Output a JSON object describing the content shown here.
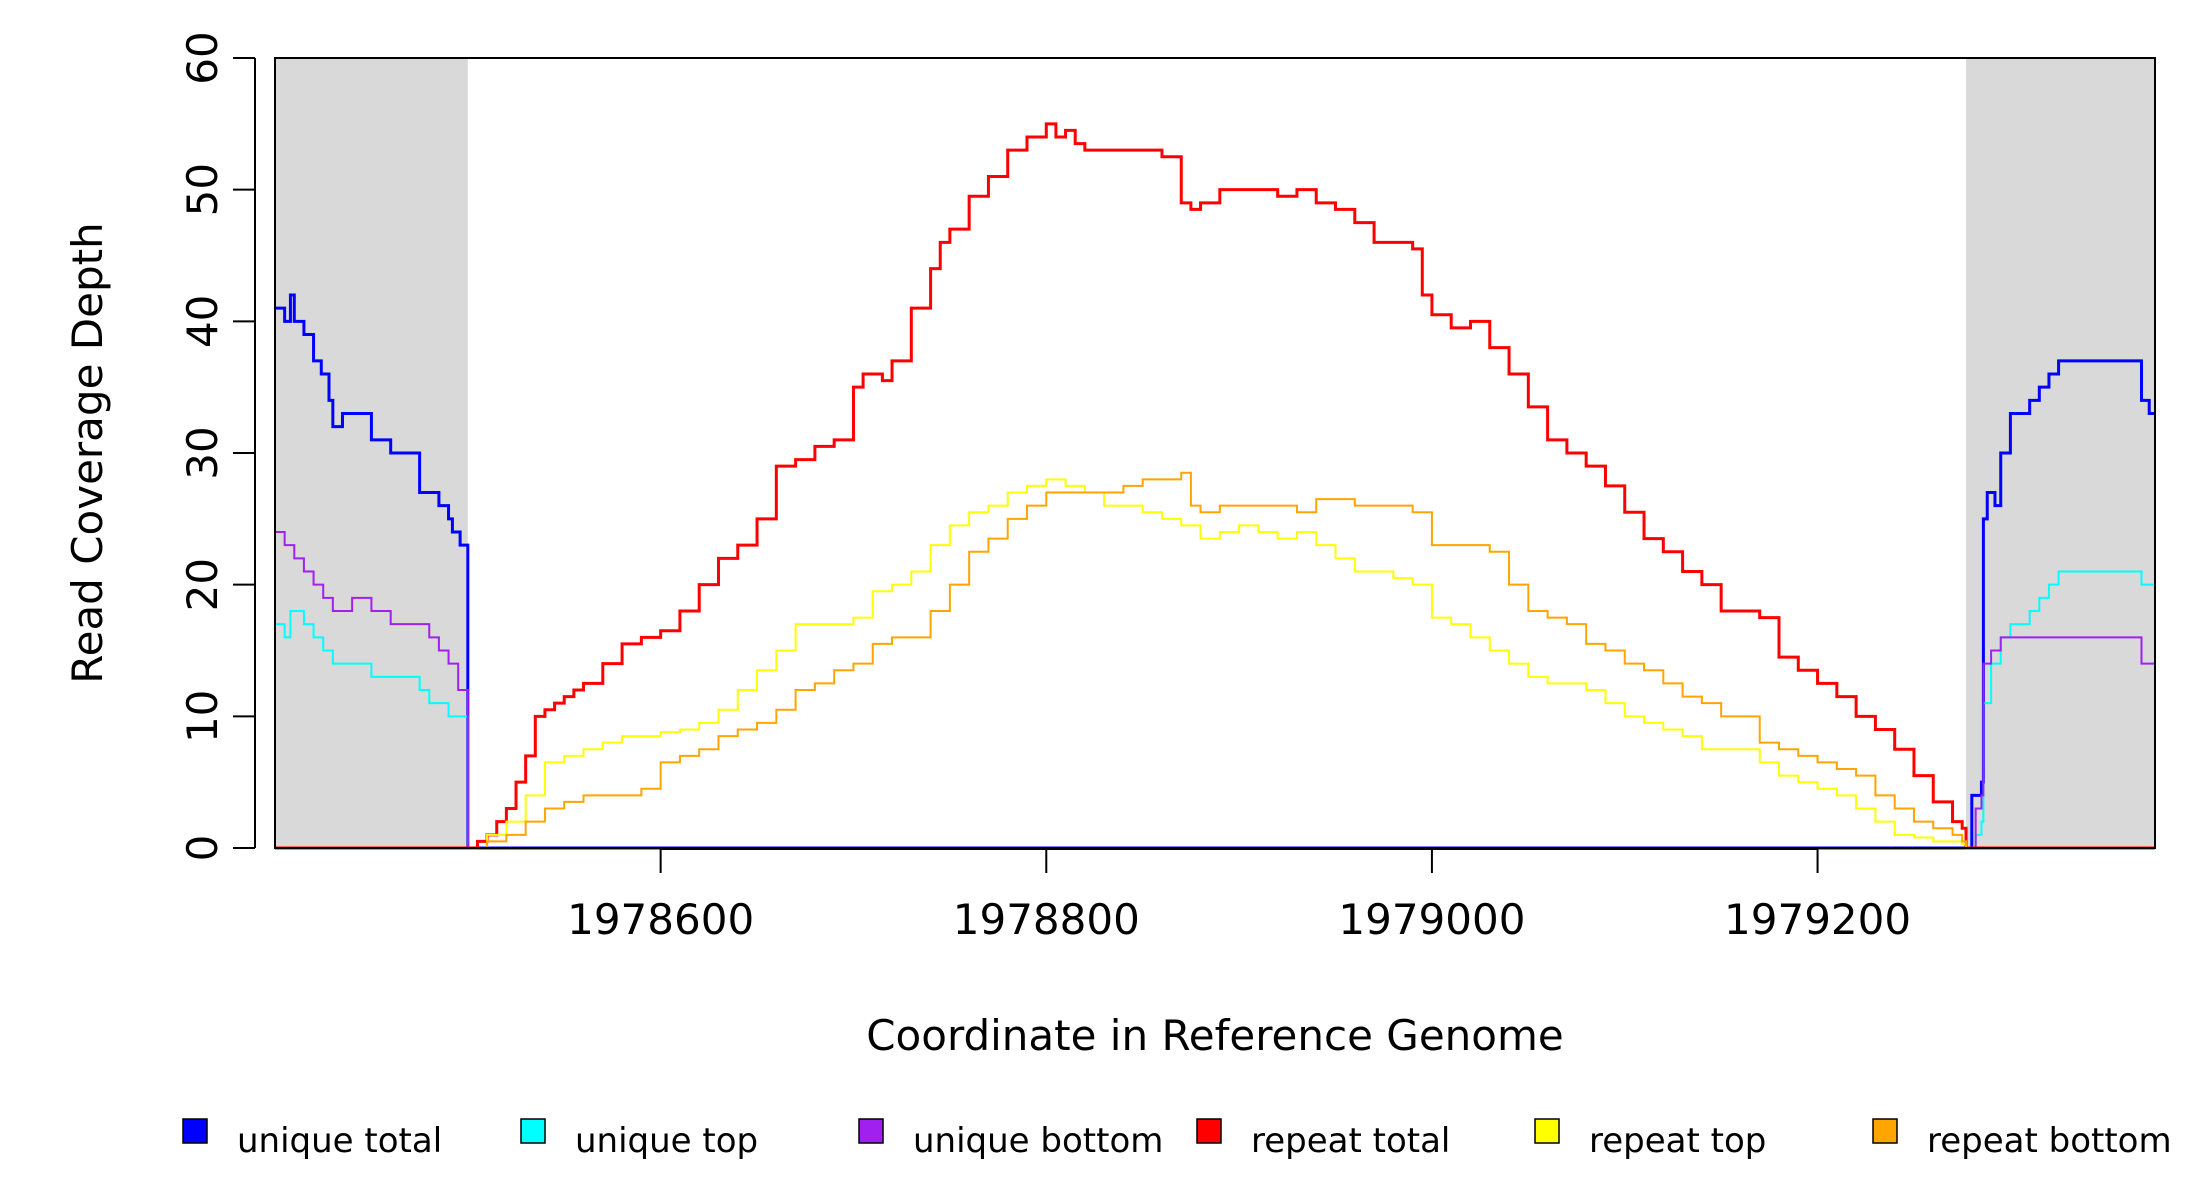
{
  "chart_data": {
    "type": "line",
    "xlabel": "Coordinate in Reference Genome",
    "ylabel": "Read Coverage Depth",
    "xlim": [
      1978400,
      1979375
    ],
    "ylim": [
      0,
      60
    ],
    "x_ticks": [
      {
        "value": 1978600,
        "label": "1978600"
      },
      {
        "value": 1978800,
        "label": "1978800"
      },
      {
        "value": 1979000,
        "label": "1979000"
      },
      {
        "value": 1979200,
        "label": "1979200"
      }
    ],
    "y_ticks": [
      {
        "value": 0,
        "label": "0"
      },
      {
        "value": 10,
        "label": "10"
      },
      {
        "value": 20,
        "label": "20"
      },
      {
        "value": 30,
        "label": "30"
      },
      {
        "value": 40,
        "label": "40"
      },
      {
        "value": 50,
        "label": "50"
      },
      {
        "value": 60,
        "label": "60"
      }
    ],
    "shaded_regions": [
      {
        "x": [
          1978400,
          1978500
        ],
        "color": "#d9d9d9"
      },
      {
        "x": [
          1979277,
          1979375
        ],
        "color": "#d9d9d9"
      }
    ],
    "legend_position": "bottom",
    "series": [
      {
        "name": "unique total",
        "color": "#0000ff",
        "x": [
          1978400,
          1978405,
          1978408,
          1978410,
          1978415,
          1978420,
          1978424,
          1978428,
          1978430,
          1978435,
          1978440,
          1978450,
          1978460,
          1978470,
          1978475,
          1978480,
          1978485,
          1978490,
          1978492,
          1978496,
          1978500,
          1978500,
          1979277,
          1979280,
          1979285,
          1979286,
          1979288,
          1979292,
          1979295,
          1979300,
          1979305,
          1979310,
          1979315,
          1979320,
          1979325,
          1979330,
          1979335,
          1979340,
          1979350,
          1979360,
          1979368,
          1979372,
          1979375
        ],
        "y": [
          41,
          40,
          42,
          40,
          39,
          37,
          36,
          34,
          32,
          33,
          33,
          31,
          30,
          30,
          27,
          27,
          26,
          25,
          24,
          23,
          21,
          0,
          0,
          4,
          5,
          25,
          27,
          26,
          30,
          33,
          33,
          34,
          35,
          36,
          37,
          37,
          37,
          37,
          37,
          37,
          34,
          33,
          33
        ]
      },
      {
        "name": "unique top",
        "color": "#00ffff",
        "x": [
          1978400,
          1978405,
          1978408,
          1978415,
          1978420,
          1978425,
          1978430,
          1978440,
          1978450,
          1978460,
          1978470,
          1978475,
          1978480,
          1978490,
          1978500,
          1978500,
          1979277,
          1979282,
          1979285,
          1979286,
          1979290,
          1979295,
          1979300,
          1979310,
          1979315,
          1979320,
          1979325,
          1979330,
          1979340,
          1979360,
          1979368,
          1979375
        ],
        "y": [
          17,
          16,
          18,
          17,
          16,
          15,
          14,
          14,
          13,
          13,
          13,
          12,
          11,
          10,
          9,
          0,
          0,
          1,
          2,
          11,
          14,
          16,
          17,
          18,
          19,
          20,
          21,
          21,
          21,
          21,
          20,
          20
        ]
      },
      {
        "name": "unique bottom",
        "color": "#a020f0",
        "x": [
          1978400,
          1978405,
          1978410,
          1978415,
          1978420,
          1978425,
          1978430,
          1978440,
          1978450,
          1978460,
          1978470,
          1978480,
          1978485,
          1978490,
          1978495,
          1978500,
          1978500,
          1979277,
          1979282,
          1979285,
          1979286,
          1979290,
          1979295,
          1979300,
          1979310,
          1979320,
          1979330,
          1979360,
          1979368,
          1979375
        ],
        "y": [
          24,
          23,
          22,
          21,
          20,
          19,
          18,
          19,
          18,
          17,
          17,
          16,
          15,
          14,
          12,
          11,
          0,
          0,
          3,
          4,
          14,
          15,
          16,
          16,
          16,
          16,
          16,
          16,
          14,
          13
        ]
      },
      {
        "name": "repeat total",
        "color": "#ff0000",
        "x": [
          1978400,
          1978500,
          1978500,
          1978505,
          1978510,
          1978515,
          1978520,
          1978525,
          1978530,
          1978535,
          1978540,
          1978545,
          1978550,
          1978555,
          1978560,
          1978570,
          1978580,
          1978585,
          1978590,
          1978600,
          1978610,
          1978620,
          1978630,
          1978640,
          1978650,
          1978660,
          1978665,
          1978670,
          1978680,
          1978690,
          1978700,
          1978705,
          1978710,
          1978715,
          1978720,
          1978730,
          1978740,
          1978745,
          1978750,
          1978760,
          1978770,
          1978780,
          1978790,
          1978800,
          1978805,
          1978810,
          1978815,
          1978820,
          1978830,
          1978840,
          1978850,
          1978860,
          1978870,
          1978875,
          1978880,
          1978890,
          1978900,
          1978910,
          1978920,
          1978930,
          1978940,
          1978950,
          1978960,
          1978970,
          1978980,
          1978990,
          1978995,
          1979000,
          1979010,
          1979020,
          1979030,
          1979040,
          1979050,
          1979060,
          1979070,
          1979080,
          1979090,
          1979100,
          1979110,
          1979120,
          1979130,
          1979140,
          1979150,
          1979160,
          1979170,
          1979180,
          1979190,
          1979200,
          1979210,
          1979220,
          1979230,
          1979240,
          1979250,
          1979260,
          1979270,
          1979275,
          1979277,
          1979277,
          1979375
        ],
        "y": [
          0,
          0,
          0,
          0.5,
          1,
          2,
          3,
          5,
          7,
          10,
          10.5,
          11,
          11.5,
          12,
          12.5,
          14,
          15.5,
          15.5,
          16,
          16.5,
          18,
          20,
          22,
          23,
          25,
          29,
          29,
          29.5,
          30.5,
          31,
          35,
          36,
          36,
          35.5,
          37,
          41,
          44,
          46,
          47,
          49.5,
          51,
          53,
          54,
          55,
          54,
          54.5,
          53.5,
          53,
          53,
          53,
          53,
          52.5,
          49,
          48.5,
          49,
          50,
          50,
          50,
          49.5,
          50,
          49,
          48.5,
          47.5,
          46,
          46,
          45.5,
          42,
          40.5,
          39.5,
          40,
          38,
          36,
          33.5,
          31,
          30,
          29,
          27.5,
          25.5,
          23.5,
          22.5,
          21,
          20,
          18,
          18,
          17.5,
          14.5,
          13.5,
          12.5,
          11.5,
          10,
          9,
          7.5,
          5.5,
          3.5,
          2,
          1.5,
          1,
          0,
          0
        ]
      },
      {
        "name": "repeat top",
        "color": "#ffff00",
        "x": [
          1978400,
          1978500,
          1978500,
          1978510,
          1978520,
          1978530,
          1978540,
          1978550,
          1978560,
          1978570,
          1978580,
          1978590,
          1978600,
          1978610,
          1978620,
          1978630,
          1978640,
          1978650,
          1978660,
          1978670,
          1978680,
          1978690,
          1978700,
          1978710,
          1978720,
          1978730,
          1978740,
          1978750,
          1978760,
          1978770,
          1978780,
          1978790,
          1978800,
          1978805,
          1978810,
          1978820,
          1978830,
          1978840,
          1978850,
          1978860,
          1978870,
          1978880,
          1978890,
          1978900,
          1978910,
          1978920,
          1978930,
          1978940,
          1978950,
          1978960,
          1978970,
          1978980,
          1978990,
          1979000,
          1979010,
          1979020,
          1979030,
          1979040,
          1979050,
          1979060,
          1979070,
          1979080,
          1979090,
          1979100,
          1979110,
          1979120,
          1979130,
          1979140,
          1979150,
          1979160,
          1979170,
          1979180,
          1979190,
          1979200,
          1979210,
          1979220,
          1979230,
          1979240,
          1979250,
          1979260,
          1979270,
          1979275,
          1979277,
          1979277,
          1979375
        ],
        "y": [
          0,
          0,
          0,
          1,
          2,
          4,
          6.5,
          7,
          7.5,
          8,
          8.5,
          8.5,
          8.8,
          9,
          9.5,
          10.5,
          12,
          13.5,
          15,
          17,
          17,
          17,
          17.5,
          19.5,
          20,
          21,
          23,
          24.5,
          25.5,
          26,
          27,
          27.5,
          28,
          28,
          27.5,
          27,
          26,
          26,
          25.5,
          25,
          24.5,
          23.5,
          24,
          24.5,
          24,
          23.5,
          24,
          23,
          22,
          21,
          21,
          20.5,
          20,
          17.5,
          17,
          16,
          15,
          14,
          13,
          12.5,
          12.5,
          12,
          11,
          10,
          9.5,
          9,
          8.5,
          7.5,
          7.5,
          7.5,
          6.5,
          5.5,
          5,
          4.5,
          4,
          3,
          2,
          1,
          0.8,
          0.5,
          0.5,
          0.3,
          0.2,
          0,
          0
        ]
      },
      {
        "name": "repeat bottom",
        "color": "#ffa500",
        "x": [
          1978400,
          1978500,
          1978500,
          1978510,
          1978520,
          1978530,
          1978540,
          1978550,
          1978560,
          1978570,
          1978580,
          1978590,
          1978600,
          1978610,
          1978620,
          1978630,
          1978640,
          1978650,
          1978660,
          1978670,
          1978680,
          1978690,
          1978700,
          1978710,
          1978720,
          1978730,
          1978740,
          1978750,
          1978760,
          1978770,
          1978780,
          1978790,
          1978800,
          1978810,
          1978820,
          1978830,
          1978840,
          1978850,
          1978860,
          1978870,
          1978875,
          1978880,
          1978890,
          1978900,
          1978910,
          1978920,
          1978930,
          1978940,
          1978950,
          1978960,
          1978970,
          1978980,
          1978990,
          1979000,
          1979010,
          1979020,
          1979030,
          1979040,
          1979050,
          1979060,
          1979070,
          1979080,
          1979090,
          1979100,
          1979110,
          1979120,
          1979130,
          1979140,
          1979150,
          1979160,
          1979170,
          1979180,
          1979190,
          1979200,
          1979210,
          1979220,
          1979230,
          1979240,
          1979250,
          1979260,
          1979270,
          1979275,
          1979277,
          1979277,
          1979375
        ],
        "y": [
          0,
          0,
          0,
          0.5,
          1,
          2,
          3,
          3.5,
          4,
          4,
          4,
          4.5,
          6.5,
          7,
          7.5,
          8.5,
          9,
          9.5,
          10.5,
          12,
          12.5,
          13.5,
          14,
          15.5,
          16,
          16,
          18,
          20,
          22.5,
          23.5,
          25,
          26,
          27,
          27,
          27,
          27,
          27.5,
          28,
          28,
          28.5,
          26,
          25.5,
          26,
          26,
          26,
          26,
          25.5,
          26.5,
          26.5,
          26,
          26,
          26,
          25.5,
          23,
          23,
          23,
          22.5,
          20,
          18,
          17.5,
          17,
          15.5,
          15,
          14,
          13.5,
          12.5,
          11.5,
          11,
          10,
          10,
          8,
          7.5,
          7,
          6.5,
          6,
          5.5,
          4,
          3,
          2,
          1.5,
          1,
          0.5,
          0.3,
          0,
          0
        ]
      }
    ]
  }
}
